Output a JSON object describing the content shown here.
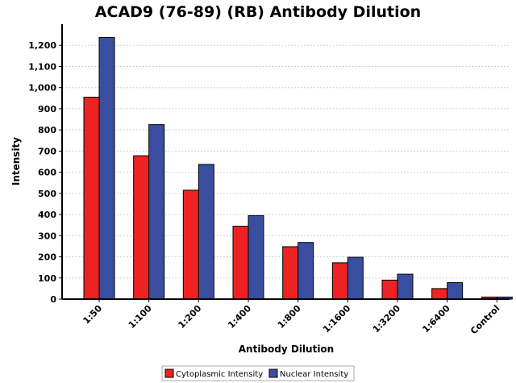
{
  "chart_data": {
    "type": "bar",
    "title": "ACAD9 (76-89) (RB) Antibody Dilution",
    "xlabel": "Antibody Dilution",
    "ylabel": "Intensity",
    "categories": [
      "1:50",
      "1:100",
      "1:200",
      "1:400",
      "1:800",
      "1:1600",
      "1:3200",
      "1:6400",
      "Control"
    ],
    "series": [
      {
        "name": "Cytoplasmic Intensity",
        "color": "#ee2222",
        "values": [
          955,
          678,
          515,
          345,
          248,
          172,
          90,
          50,
          10
        ]
      },
      {
        "name": "Nuclear Intensity",
        "color": "#3a4ea0",
        "values": [
          1237,
          825,
          637,
          395,
          268,
          198,
          118,
          78,
          10
        ]
      }
    ],
    "ylim": [
      0,
      1300
    ],
    "yticks": [
      0,
      100,
      200,
      300,
      400,
      500,
      600,
      700,
      800,
      900,
      1000,
      1100,
      1200
    ],
    "ytick_labels": [
      "0",
      "100",
      "200",
      "300",
      "400",
      "500",
      "600",
      "700",
      "800",
      "900",
      "1,000",
      "1,100",
      "1,200"
    ],
    "grid": true,
    "legend_position": "bottom-center"
  }
}
